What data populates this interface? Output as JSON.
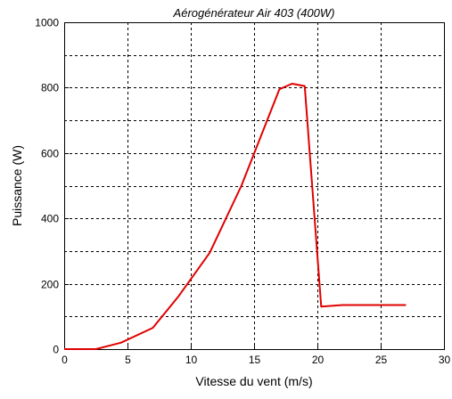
{
  "chart_data": {
    "type": "line",
    "title": "Aérogénérateur Air 403  (400W)",
    "xlabel": "Vitesse du vent  (m/s)",
    "ylabel": "Puissance (W)",
    "xlim": [
      0,
      30
    ],
    "ylim": [
      0,
      1000
    ],
    "xticks": [
      0,
      5,
      10,
      15,
      20,
      25,
      30
    ],
    "xtick_labels": [
      "0",
      "5",
      "10",
      "15",
      "20",
      "25",
      "30"
    ],
    "yticks": [
      0,
      200,
      400,
      600,
      800,
      1000
    ],
    "ytick_labels": [
      "0",
      "200",
      "400",
      "600",
      "800",
      "1000"
    ],
    "grid": true,
    "grid_style": "dashed",
    "grid_x": [
      5,
      10,
      15,
      20,
      25
    ],
    "grid_y": [
      100,
      200,
      300,
      400,
      500,
      600,
      700,
      800,
      900
    ],
    "series": [
      {
        "color": "#e00000",
        "x": [
          0,
          2.5,
          4.5,
          7,
          9,
          11.5,
          14,
          17,
          18,
          19,
          20.3,
          22,
          27
        ],
        "y": [
          0,
          0,
          20,
          65,
          160,
          295,
          500,
          795,
          812,
          805,
          130,
          135,
          135
        ]
      }
    ]
  }
}
